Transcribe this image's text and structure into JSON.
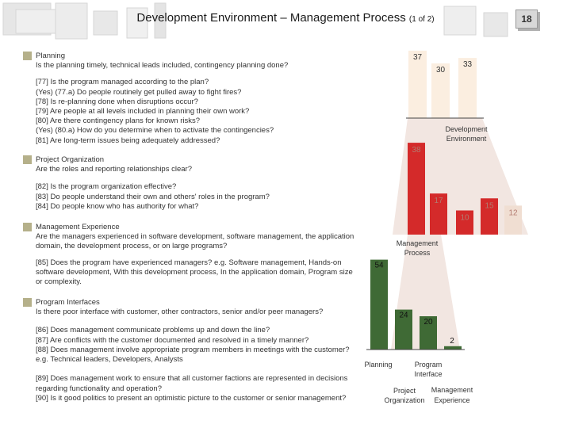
{
  "header": {
    "title": "Development Environment – Management Process",
    "subtitle": "(1 of 2)",
    "page_number": "18"
  },
  "sections": [
    {
      "heading": "Planning",
      "description": "Is the planning timely, technical leads included, contingency planning done?",
      "questions": "[77] Is the program managed according to the plan?\n(Yes) (77.a) Do people routinely get pulled away to fight fires?\n[78] Is re-planning done when disruptions occur?\n[79] Are people at all levels included in planning their own work?\n[80] Are there contingency plans for known risks?\n(Yes) (80.a) How do you determine when to activate the contingencies?\n[81] Are long-term issues being adequately addressed?"
    },
    {
      "heading": "Project Organization",
      "description": "Are the roles and reporting relationships clear?",
      "questions": "[82] Is the program organization effective?\n[83] Do people understand their own and others' roles in the program?\n[84] Do people know who has authority for what?"
    },
    {
      "heading": "Management Experience",
      "description": "Are the managers experienced in software development, software management, the application domain, the development process, or on large programs?",
      "questions": "[85] Does the program have experienced managers? e.g. Software management, Hands-on software development, With this development process, In the application domain, Program size or complexity."
    },
    {
      "heading": "Program Interfaces",
      "description": "Is there poor interface with customer, other contractors, senior and/or peer managers?",
      "questions": "[86] Does management communicate problems up and down the line?\n[87] Are conflicts with the customer documented and resolved in a timely manner?\n[88] Does management involve appropriate program members in meetings with the customer? e.g. Technical leaders, Developers, Analysts\n\n[89] Does management work to ensure that all customer factions are represented in decisions regarding functionality and operation?\n[90] Is it good politics to present an optimistic picture to the customer or senior management?"
    }
  ],
  "chart_data": [
    {
      "type": "bar",
      "series_label": "Development Environment",
      "values": [
        37,
        30,
        33
      ],
      "colors": [
        "#fbeee0",
        "#fbeee0",
        "#fbeee0"
      ]
    },
    {
      "type": "bar",
      "series_label": "Management Process",
      "values": [
        38,
        17,
        10,
        15,
        12
      ],
      "colors": [
        "#d42a2a",
        "#d42a2a",
        "#d42a2a",
        "#d42a2a",
        "#f0ded2"
      ]
    },
    {
      "type": "bar",
      "categories": [
        "Planning",
        "Program Interface",
        "Project Organization",
        "Management Experience"
      ],
      "values": [
        54,
        24,
        20,
        2
      ],
      "colors": [
        "#3f6a35",
        "#3f6a35",
        "#3f6a35",
        "#3f6a35"
      ]
    }
  ],
  "colors": {
    "accent_red": "#d42a2a",
    "accent_green": "#3f6a35",
    "funnel": "#f2e6e1",
    "bullet": "#b5b08a"
  }
}
